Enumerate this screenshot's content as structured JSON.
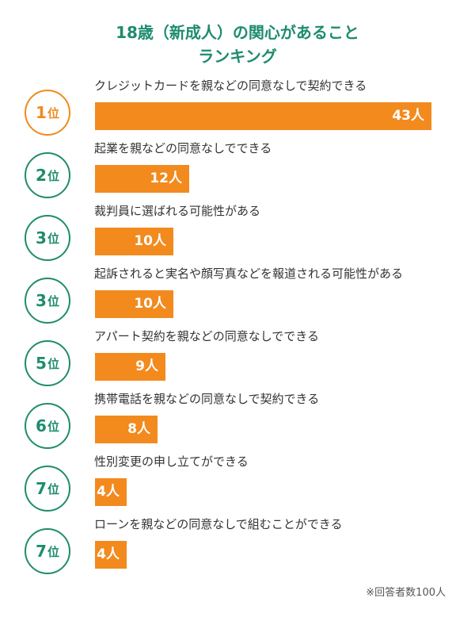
{
  "header": {
    "title_line1": "18歳（新成人）の関心があること",
    "title_line2": "ランキング"
  },
  "colors": {
    "accent_green": "#1e8c6e",
    "accent_orange": "#f08a1f",
    "bar_fill": "#f28a1e"
  },
  "chart_data": {
    "type": "bar",
    "orientation": "horizontal",
    "title": "18歳（新成人）の関心があること ランキング",
    "unit": "人",
    "xlim": [
      0,
      43
    ],
    "items": [
      {
        "rank": "1",
        "rank_suffix": "位",
        "label": "クレジットカードを親などの同意なしで契約できる",
        "value": 43,
        "value_label": "43人"
      },
      {
        "rank": "2",
        "rank_suffix": "位",
        "label": "起業を親などの同意なしでできる",
        "value": 12,
        "value_label": "12人"
      },
      {
        "rank": "3",
        "rank_suffix": "位",
        "label": "裁判員に選ばれる可能性がある",
        "value": 10,
        "value_label": "10人"
      },
      {
        "rank": "3",
        "rank_suffix": "位",
        "label": "起訴されると実名や顔写真などを報道される可能性がある",
        "value": 10,
        "value_label": "10人"
      },
      {
        "rank": "5",
        "rank_suffix": "位",
        "label": "アパート契約を親などの同意なしでできる",
        "value": 9,
        "value_label": "9人"
      },
      {
        "rank": "6",
        "rank_suffix": "位",
        "label": "携帯電話を親などの同意なしで契約できる",
        "value": 8,
        "value_label": "8人"
      },
      {
        "rank": "7",
        "rank_suffix": "位",
        "label": "性別変更の申し立てができる",
        "value": 4,
        "value_label": "4人"
      },
      {
        "rank": "7",
        "rank_suffix": "位",
        "label": "ローンを親などの同意なしで組むことができる",
        "value": 4,
        "value_label": "4人"
      }
    ],
    "footnote": "※回答者数100人"
  }
}
